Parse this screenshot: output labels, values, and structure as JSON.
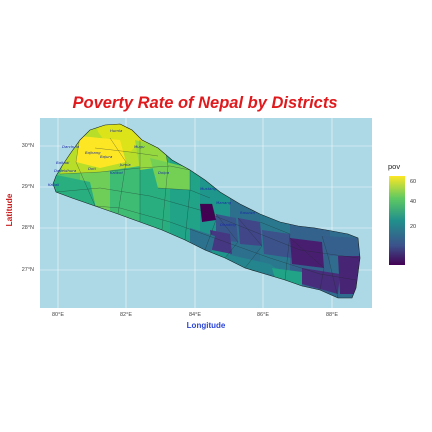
{
  "title": "Poverty Rate of Nepal by Districts",
  "axes": {
    "xlabel": "Longitude",
    "ylabel": "Latitude",
    "xticks": [
      "80°E",
      "82°E",
      "84°E",
      "86°E",
      "88°E"
    ],
    "yticks": [
      "30°N",
      "29°N",
      "28°N",
      "27°N"
    ]
  },
  "legend": {
    "title": "pov",
    "ticks": [
      "60",
      "40",
      "20"
    ]
  },
  "colors": {
    "sea": "#add8e6",
    "low": "#440154",
    "mid": "#21908c",
    "high": "#fde725",
    "title": "#e0191d",
    "label": "#2b45d6"
  },
  "map": {
    "district_labels": [
      "Humla",
      "Darchula",
      "Bajhang",
      "Bajura",
      "Baitadi",
      "Dadeldhura",
      "Doti",
      "Kailali",
      "Dolpa",
      "Jumla",
      "Mugu",
      "Kalikot",
      "Mustang",
      "Manang",
      "Rasuwa",
      "Dhading"
    ]
  }
}
